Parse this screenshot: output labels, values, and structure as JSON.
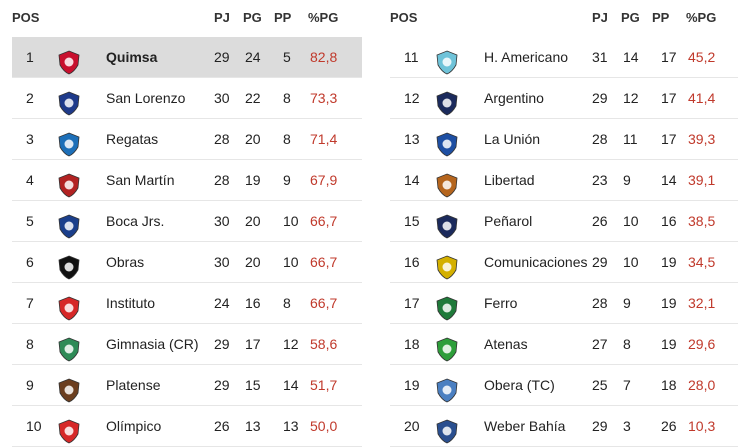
{
  "headers": {
    "pos": "POS",
    "pj": "PJ",
    "pg": "PG",
    "pp": "PP",
    "pct": "%PG"
  },
  "left": [
    {
      "pos": "1",
      "team": "Quimsa",
      "pj": "29",
      "pg": "24",
      "pp": "5",
      "pct": "82,8",
      "logo": "quimsa-logo",
      "color": "#c8102e"
    },
    {
      "pos": "2",
      "team": "San Lorenzo",
      "pj": "30",
      "pg": "22",
      "pp": "8",
      "pct": "73,3",
      "logo": "san-lorenzo-logo",
      "color": "#1e3a8a"
    },
    {
      "pos": "3",
      "team": "Regatas",
      "pj": "28",
      "pg": "20",
      "pp": "8",
      "pct": "71,4",
      "logo": "regatas-logo",
      "color": "#1d6fb8"
    },
    {
      "pos": "4",
      "team": "San Martín",
      "pj": "28",
      "pg": "19",
      "pp": "9",
      "pct": "67,9",
      "logo": "san-martin-logo",
      "color": "#b22222"
    },
    {
      "pos": "5",
      "team": "Boca Jrs.",
      "pj": "30",
      "pg": "20",
      "pp": "10",
      "pct": "66,7",
      "logo": "boca-logo",
      "color": "#1b3f8b"
    },
    {
      "pos": "6",
      "team": "Obras",
      "pj": "30",
      "pg": "20",
      "pp": "10",
      "pct": "66,7",
      "logo": "obras-logo",
      "color": "#111111"
    },
    {
      "pos": "7",
      "team": "Instituto",
      "pj": "24",
      "pg": "16",
      "pp": "8",
      "pct": "66,7",
      "logo": "instituto-logo",
      "color": "#d62828"
    },
    {
      "pos": "8",
      "team": "Gimnasia (CR)",
      "pj": "29",
      "pg": "17",
      "pp": "12",
      "pct": "58,6",
      "logo": "gimnasia-logo",
      "color": "#2e8b57"
    },
    {
      "pos": "9",
      "team": "Platense",
      "pj": "29",
      "pg": "15",
      "pp": "14",
      "pct": "51,7",
      "logo": "platense-logo",
      "color": "#6b3e1f"
    },
    {
      "pos": "10",
      "team": "Olímpico",
      "pj": "26",
      "pg": "13",
      "pp": "13",
      "pct": "50,0",
      "logo": "olimpico-logo",
      "color": "#d62828"
    }
  ],
  "right": [
    {
      "pos": "11",
      "team": "H. Americano",
      "pj": "31",
      "pg": "14",
      "pp": "17",
      "pct": "45,2",
      "logo": "h-americano-logo",
      "color": "#6fc3d9"
    },
    {
      "pos": "12",
      "team": "Argentino",
      "pj": "29",
      "pg": "12",
      "pp": "17",
      "pct": "41,4",
      "logo": "argentino-logo",
      "color": "#1b2a5c"
    },
    {
      "pos": "13",
      "team": "La Unión",
      "pj": "28",
      "pg": "11",
      "pp": "17",
      "pct": "39,3",
      "logo": "la-union-logo",
      "color": "#1e4fa3"
    },
    {
      "pos": "14",
      "team": "Libertad",
      "pj": "23",
      "pg": "9",
      "pp": "14",
      "pct": "39,1",
      "logo": "libertad-logo",
      "color": "#b5651d"
    },
    {
      "pos": "15",
      "team": "Peñarol",
      "pj": "26",
      "pg": "10",
      "pp": "16",
      "pct": "38,5",
      "logo": "penarol-logo",
      "color": "#1b2a5c"
    },
    {
      "pos": "16",
      "team": "Comunicaciones",
      "pj": "29",
      "pg": "10",
      "pp": "19",
      "pct": "34,5",
      "logo": "comunicaciones-logo",
      "color": "#d4b000"
    },
    {
      "pos": "17",
      "team": "Ferro",
      "pj": "28",
      "pg": "9",
      "pp": "19",
      "pct": "32,1",
      "logo": "ferro-logo",
      "color": "#1f7a3a"
    },
    {
      "pos": "18",
      "team": "Atenas",
      "pj": "27",
      "pg": "8",
      "pp": "19",
      "pct": "29,6",
      "logo": "atenas-logo",
      "color": "#2e9e3a"
    },
    {
      "pos": "19",
      "team": "Obera (TC)",
      "pj": "25",
      "pg": "7",
      "pp": "18",
      "pct": "28,0",
      "logo": "obera-logo",
      "color": "#4a7fc1"
    },
    {
      "pos": "20",
      "team": "Weber Bahía",
      "pj": "29",
      "pg": "3",
      "pp": "26",
      "pct": "10,3",
      "logo": "weber-bahia-logo",
      "color": "#2a4f8f"
    }
  ]
}
